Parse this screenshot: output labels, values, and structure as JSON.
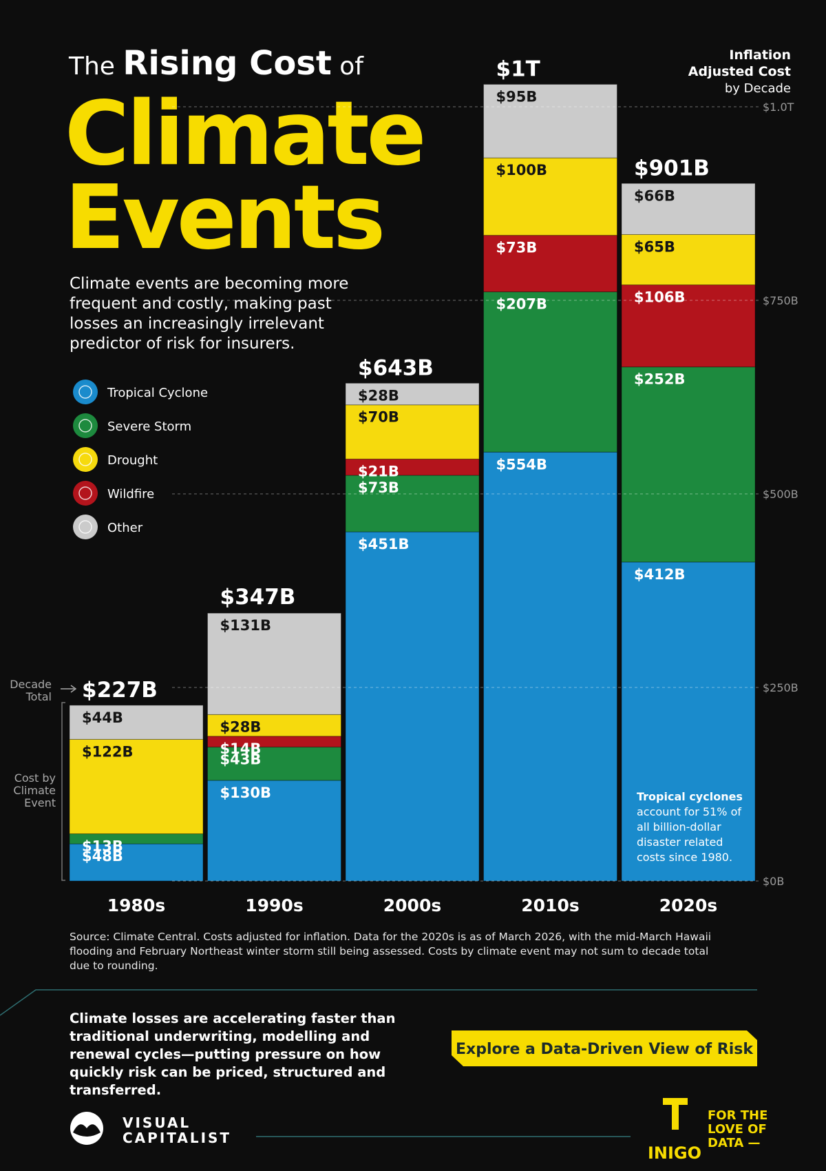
{
  "chart_data": {
    "type": "stacked_bar",
    "title": {
      "pre": "The",
      "bold": "Rising Cost",
      "post": "of",
      "line2": "Climate",
      "line3": "Events"
    },
    "description": "Climate events are becoming more frequent and costly, making past losses an increasingly irrelevant predictor of risk for insurers.",
    "y_axis_title": [
      "Inflation",
      "Adjusted Cost",
      "by Decade"
    ],
    "total_note": [
      "Decade",
      "Total"
    ],
    "segment_note": [
      "Cost by",
      "Climate",
      "Event"
    ],
    "annotation": {
      "bold": "Tropical cyclones",
      "text": "account for 51% of all billion-dollar disaster related costs since 1980."
    },
    "categories": [
      "1980s",
      "1990s",
      "2000s",
      "2010s",
      "2020s"
    ],
    "series": [
      {
        "name": "Tropical Cyclone",
        "color": "#1a8bcc",
        "values": [
          48,
          130,
          451,
          554,
          412
        ],
        "value_labels": [
          "$48B",
          "$130B",
          "$451B",
          "$554B",
          "$412B"
        ]
      },
      {
        "name": "Severe Storm",
        "color": "#1d8a3e",
        "values": [
          13,
          43,
          73,
          207,
          252
        ],
        "value_labels": [
          "$13B",
          "$43B",
          "$73B",
          "$207B",
          "$252B"
        ]
      },
      {
        "name": "Wildfire",
        "color": "#b3141c",
        "values": [
          0,
          14,
          21,
          73,
          106
        ],
        "value_labels": [
          null,
          "$14B",
          "$21B",
          "$73B",
          "$106B"
        ]
      },
      {
        "name": "Drought",
        "color": "#f6da0d",
        "values": [
          122,
          28,
          70,
          100,
          65
        ],
        "value_labels": [
          "$122B",
          "$28B",
          "$70B",
          "$100B",
          "$65B"
        ]
      },
      {
        "name": "Other",
        "color": "#cbcbcb",
        "values": [
          44,
          131,
          28,
          95,
          66
        ],
        "value_labels": [
          "$44B",
          "$131B",
          "$28B",
          "$95B",
          "$66B"
        ]
      }
    ],
    "totals": {
      "values": [
        227,
        347,
        643,
        1029,
        901
      ],
      "value_labels": [
        "$227B",
        "$347B",
        "$643B",
        "$1T",
        "$901B"
      ]
    },
    "ylim": [
      0,
      1000
    ],
    "yticks": [
      {
        "value": 0,
        "label": "$0B"
      },
      {
        "value": 250,
        "label": "$250B"
      },
      {
        "value": 500,
        "label": "$500B"
      },
      {
        "value": 750,
        "label": "$750B"
      },
      {
        "value": 1000,
        "label": "$1.0T"
      }
    ],
    "grid": true,
    "source": "Source: Climate Central. Costs adjusted for inflation. Data for the 2020s is as of March 2026, with the mid-March Hawaii flooding and February Northeast winter storm still being assessed. Costs by climate event may not sum to decade total due to rounding."
  },
  "footer": {
    "text": "Climate losses are accelerating faster than traditional underwriting, modelling and renewal cycles—putting pressure on how quickly risk can be priced, structured and transferred.",
    "button": "Explore a Data-Driven View of Risk",
    "logo": [
      "VISUAL",
      "CAPITALIST"
    ],
    "partner": "INIGO",
    "tagline": [
      "FOR THE",
      "LOVE OF",
      "DATA —"
    ]
  }
}
